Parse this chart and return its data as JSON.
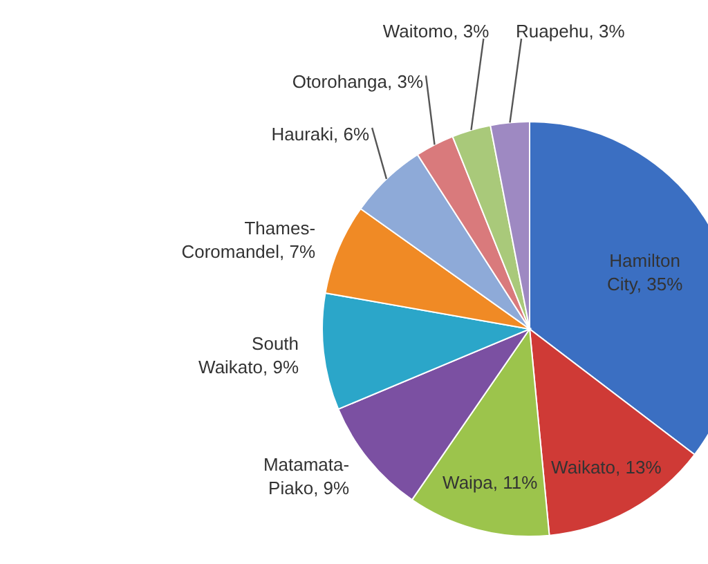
{
  "chart_data": {
    "type": "pie",
    "categories": [
      "Hamilton City",
      "Waikato",
      "Waipa",
      "Matamata-Piako",
      "South Waikato",
      "Thames-Coromandel",
      "Hauraki",
      "Otorohanga",
      "Waitomo",
      "Ruapehu"
    ],
    "values": [
      35,
      13,
      11,
      9,
      9,
      7,
      6,
      3,
      3,
      3
    ],
    "value_labels": [
      "35%",
      "13%",
      "11%",
      "9%",
      "9%",
      "7%",
      "6%",
      "3%",
      "3%",
      "3%"
    ],
    "colors": [
      "#3b6fc2",
      "#cf3a36",
      "#9cc44c",
      "#7b50a2",
      "#2ba6c9",
      "#f08a25",
      "#8eaad8",
      "#d97a7c",
      "#a9c97a",
      "#9e89c2"
    ]
  }
}
